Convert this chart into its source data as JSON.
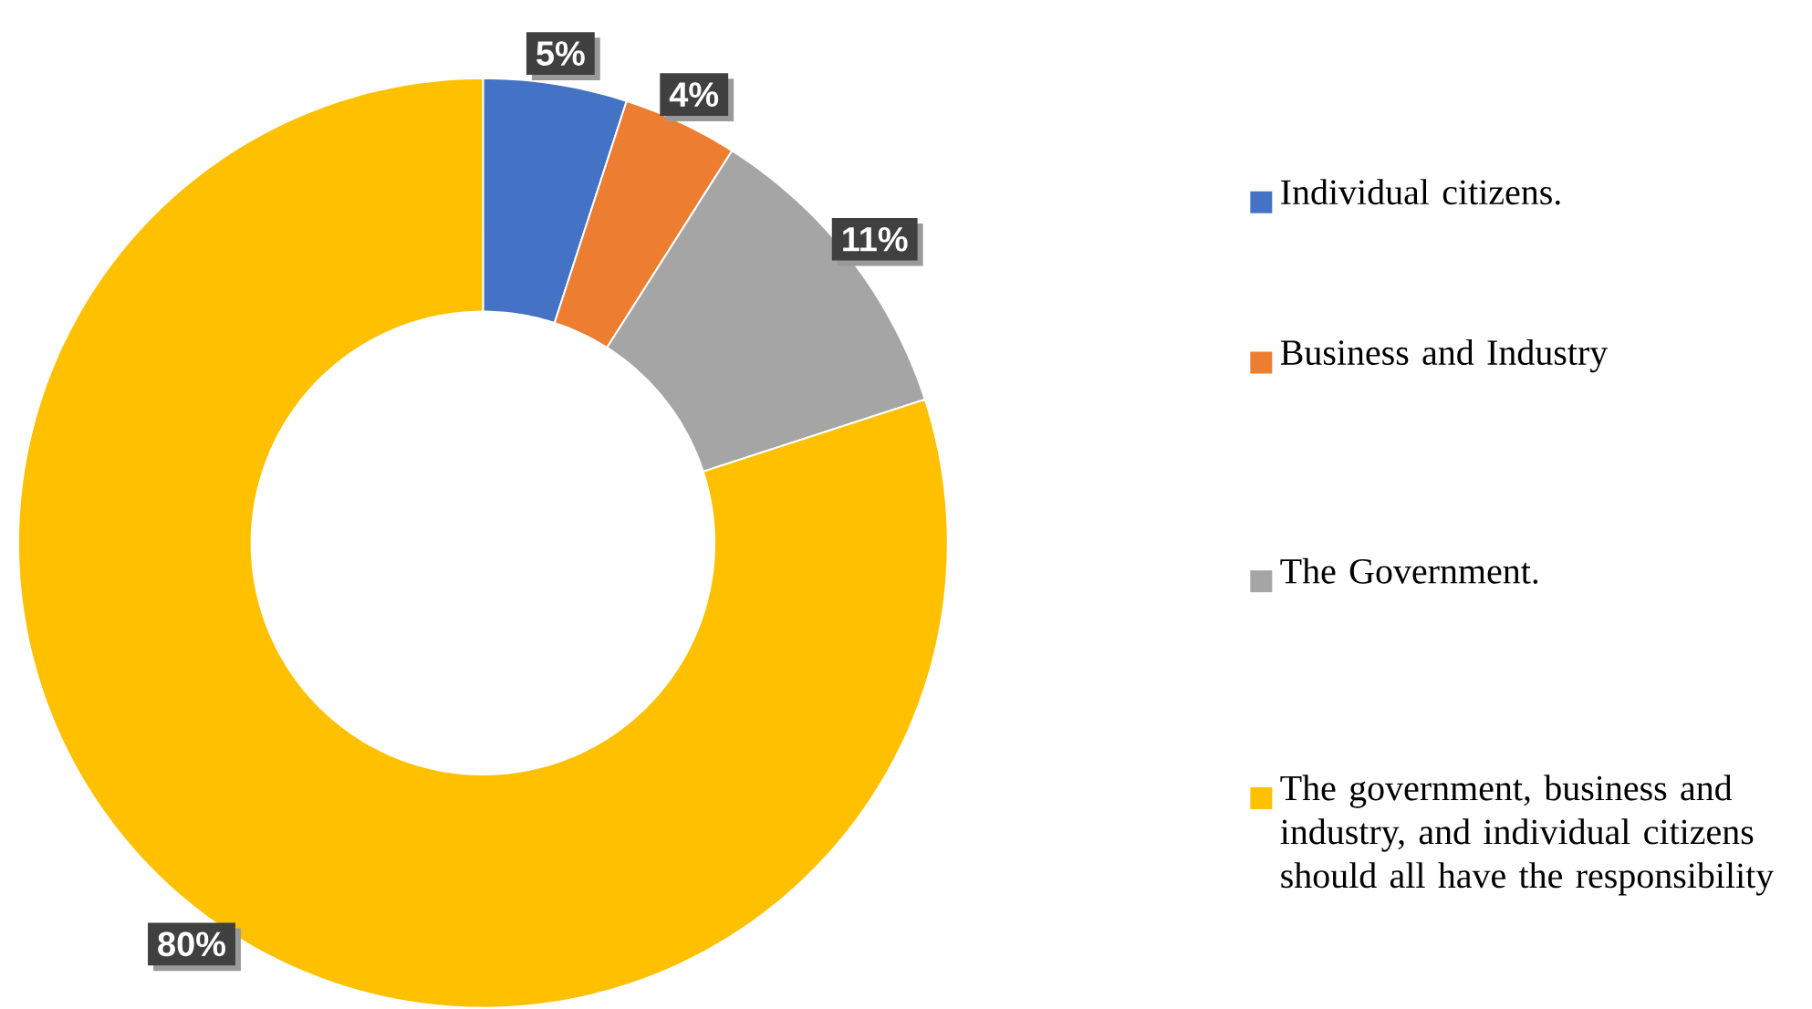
{
  "chart_data": {
    "type": "donut",
    "categories": [
      "Individual citizens.",
      "Business and Industry",
      "The Government.",
      "The government, business and industry, and individual citizens should all have the responsibility"
    ],
    "values": [
      5,
      4,
      11,
      80
    ],
    "colors": [
      "#4472c4",
      "#ed7d31",
      "#a5a5a5",
      "#ffc000"
    ],
    "value_labels": [
      "5%",
      "4%",
      "11%",
      "80%"
    ],
    "legend": "right"
  }
}
